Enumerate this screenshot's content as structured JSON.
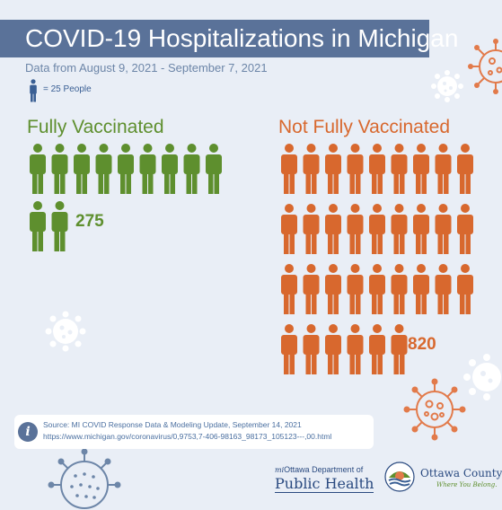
{
  "header": {
    "title": "COVID-19 Hospitalizations in Michigan"
  },
  "subtitle": "Data from August 9, 2021 - September 7, 2021",
  "legend": {
    "label": "= 25 People",
    "icon": "person-icon"
  },
  "groups": [
    {
      "label": "Fully Vaccinated",
      "count": "275",
      "icon_count": 11,
      "color": "#5e8f2e"
    },
    {
      "label": "Not Fully Vaccinated",
      "count": "820",
      "icon_count": 33,
      "color": "#d8682e"
    }
  ],
  "source": {
    "line1": "Source: MI COVID Response Data & Modeling Update, September 14, 2021",
    "line2": "https://www.michigan.gov/coronavirus/0,9753,7-406-98163_98173_105123---,00.html"
  },
  "logos": {
    "health_top_prefix": "mi",
    "health_top": "Ottawa Department of",
    "health_main": "Public Health",
    "county_name": "Ottawa County",
    "county_tagline": "Where You Belong."
  },
  "colors": {
    "banner": "#5a7299",
    "background": "#e9eef6",
    "vaccinated": "#5e8f2e",
    "unvaccinated": "#d8682e"
  }
}
